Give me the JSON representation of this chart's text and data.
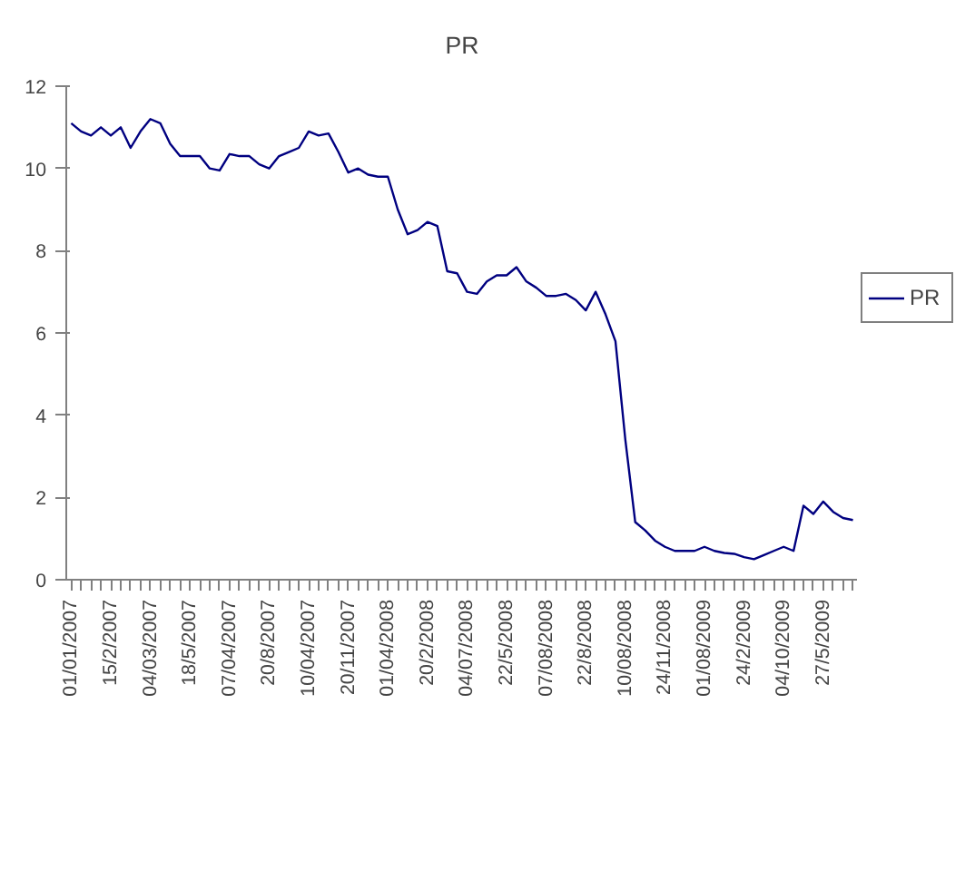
{
  "chart_data": {
    "type": "line",
    "title": "PR",
    "categories": [
      "01/01/2007",
      null,
      null,
      null,
      "15/2/2007",
      null,
      null,
      null,
      "04/03/2007",
      null,
      null,
      null,
      "18/5/2007",
      null,
      null,
      null,
      "07/04/2007",
      null,
      null,
      null,
      "20/8/2007",
      null,
      null,
      null,
      "10/04/2007",
      null,
      null,
      null,
      "20/11/2007",
      null,
      null,
      null,
      "01/04/2008",
      null,
      null,
      null,
      "20/2/2008",
      null,
      null,
      null,
      "04/07/2008",
      null,
      null,
      null,
      "22/5/2008",
      null,
      null,
      null,
      "07/08/2008",
      null,
      null,
      null,
      "22/8/2008",
      null,
      null,
      null,
      "10/08/2008",
      null,
      null,
      null,
      "24/11/2008",
      null,
      null,
      null,
      "01/08/2009",
      null,
      null,
      null,
      "24/2/2009",
      null,
      null,
      null,
      "04/10/2009",
      null,
      null,
      null,
      "27/5/2009",
      null,
      null,
      null
    ],
    "series": [
      {
        "name": "PR",
        "color": "#000080",
        "values": [
          11.1,
          10.9,
          10.8,
          11.0,
          10.8,
          11.0,
          10.5,
          10.9,
          11.2,
          11.1,
          10.6,
          10.3,
          10.3,
          10.3,
          10.0,
          9.95,
          10.35,
          10.3,
          10.3,
          10.1,
          10.0,
          10.3,
          10.4,
          10.5,
          10.9,
          10.8,
          10.85,
          10.4,
          9.9,
          10.0,
          9.85,
          9.8,
          9.8,
          9.0,
          8.4,
          8.5,
          8.7,
          8.6,
          7.5,
          7.45,
          7.0,
          6.95,
          7.25,
          7.4,
          7.4,
          7.6,
          7.25,
          7.1,
          6.9,
          6.9,
          6.95,
          6.8,
          6.55,
          7.0,
          6.45,
          5.8,
          3.4,
          1.4,
          1.2,
          0.95,
          0.8,
          0.7,
          0.7,
          0.7,
          0.8,
          0.7,
          0.65,
          0.63,
          0.55,
          0.5,
          0.6,
          0.7,
          0.8,
          0.7,
          1.8,
          1.6,
          1.9,
          1.65,
          1.5,
          1.45
        ]
      }
    ],
    "ylim": [
      0,
      12
    ],
    "yticks": [
      0,
      2,
      4,
      6,
      8,
      10,
      12
    ],
    "grid": false,
    "legend": "right",
    "marker": "none",
    "line_style": "solid"
  }
}
